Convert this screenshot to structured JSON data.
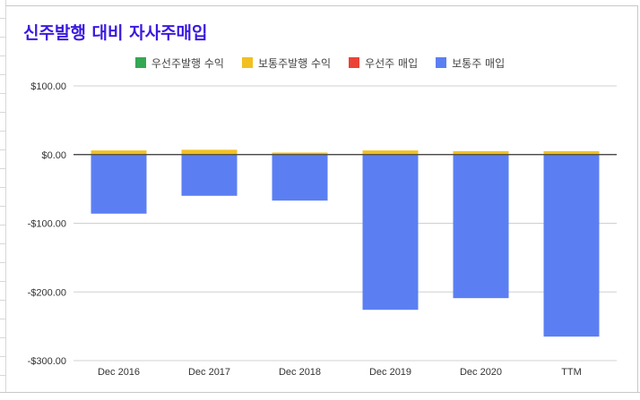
{
  "chart_data": {
    "type": "bar",
    "stacked": true,
    "title": "신주발행 대비 자사주매입",
    "title_color": "#3a1ae0",
    "categories": [
      "Dec 2016",
      "Dec 2017",
      "Dec 2018",
      "Dec 2019",
      "Dec 2020",
      "TTM"
    ],
    "series": [
      {
        "name": "우선주발행 수익",
        "color": "#34a853",
        "values": [
          0,
          0,
          0,
          0,
          0,
          0
        ]
      },
      {
        "name": "보통주발행 수익",
        "color": "#f1c021",
        "values": [
          6,
          7,
          3,
          6,
          5,
          5
        ]
      },
      {
        "name": "우선주 매입",
        "color": "#ea4335",
        "values": [
          0,
          0,
          0,
          0,
          0,
          0
        ]
      },
      {
        "name": "보통주 매입",
        "color": "#5b7ff2",
        "values": [
          -86,
          -60,
          -67,
          -226,
          -209,
          -265
        ]
      }
    ],
    "ylim": [
      -300,
      100
    ],
    "yticks": [
      100,
      0,
      -100,
      -200,
      -300
    ],
    "ytick_labels": [
      "$100.00",
      "$0.00",
      "-$100.00",
      "-$200.00",
      "-$300.00"
    ],
    "grid": true,
    "legend_position": "top"
  }
}
